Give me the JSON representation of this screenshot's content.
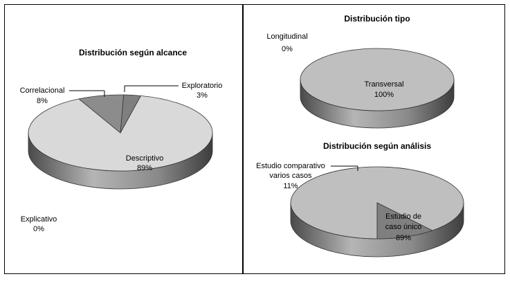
{
  "chart_data": [
    {
      "type": "pie",
      "style": "3d",
      "title": "Distribución según alcance",
      "slices": [
        {
          "label": "Exploratorio",
          "pct_label": "3%",
          "value": 3,
          "color": "#7f7f7f"
        },
        {
          "label": "Descriptivo",
          "pct_label": "89%",
          "value": 89,
          "color": "#d9d9d9"
        },
        {
          "label": "Explicativo",
          "pct_label": "0%",
          "value": 0,
          "color": "#bfbfbf"
        },
        {
          "label": "Correlacional",
          "pct_label": "8%",
          "value": 8,
          "color": "#8c8c8c"
        }
      ]
    },
    {
      "type": "pie",
      "style": "3d",
      "title": "Distribución tipo",
      "slices": [
        {
          "label": "Transversal",
          "pct_label": "100%",
          "value": 100,
          "color": "#bfbfbf"
        },
        {
          "label": "Longitudinal",
          "pct_label": "0%",
          "value": 0,
          "color": "#7f7f7f"
        }
      ]
    },
    {
      "type": "pie",
      "style": "3d",
      "title": "Distribución según análisis",
      "slices": [
        {
          "label": "Estudio de caso único",
          "label_lines": [
            "Estudio de",
            "caso único"
          ],
          "pct_label": "89%",
          "value": 89,
          "color": "#bfbfbf"
        },
        {
          "label": "Estudio comparativo varios casos",
          "label_lines": [
            "Estudio comparativo",
            "varios casos"
          ],
          "pct_label": "11%",
          "value": 11,
          "color": "#7f7f7f"
        }
      ]
    }
  ]
}
